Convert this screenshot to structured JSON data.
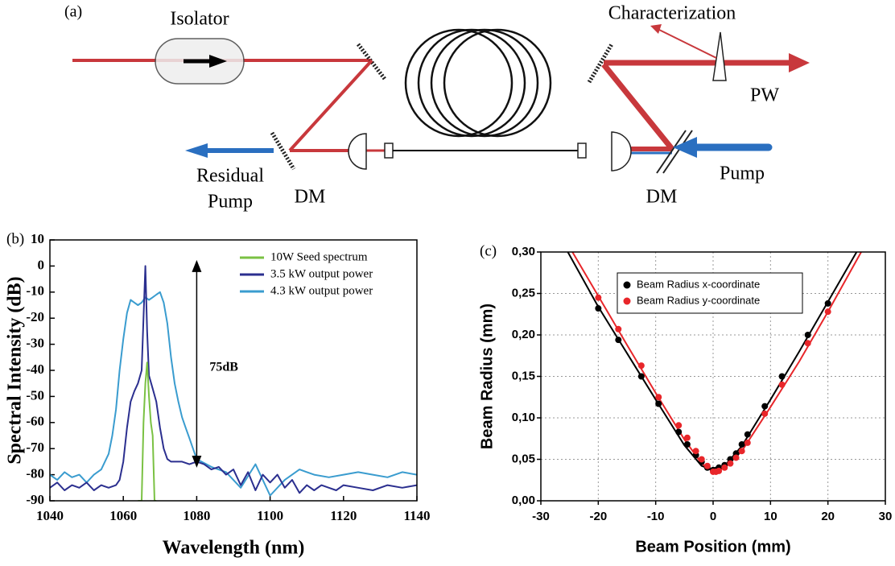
{
  "diagram": {
    "panel_label": "(a)",
    "isolator": "Isolator",
    "characterization": "Characterization",
    "output": "PW",
    "residual_pump": [
      "Residual",
      "Pump"
    ],
    "dichroic_mirrors": [
      "DM",
      "DM"
    ],
    "pump": "Pump"
  },
  "chart_data": [
    {
      "type": "line",
      "panel_label": "(b)",
      "xlabel": "Wavelength (nm)",
      "ylabel": "Spectral Intensity (dB)",
      "xlim": [
        1040,
        1140
      ],
      "ylim": [
        -90,
        10
      ],
      "xticks": [
        1040,
        1060,
        1080,
        1100,
        1120,
        1140
      ],
      "yticks": [
        -90,
        -80,
        -70,
        -60,
        -50,
        -40,
        -30,
        -20,
        -10,
        0,
        10
      ],
      "legend": "upper right",
      "series": [
        {
          "name": "10W Seed spectrum",
          "color": "#7ac143",
          "x": [
            1064,
            1065,
            1065.5,
            1066,
            1066.5,
            1067,
            1067.5,
            1068,
            1068.5,
            1069
          ],
          "values": [
            -90,
            -90,
            -60,
            -45,
            -37,
            -50,
            -60,
            -65,
            -90,
            -90
          ]
        },
        {
          "name": "3.5 kW output power",
          "color": "#2b2f8f",
          "x": [
            1040,
            1042,
            1044,
            1046,
            1048,
            1050,
            1052,
            1054,
            1056,
            1058,
            1059,
            1060,
            1061,
            1062,
            1063,
            1064,
            1065,
            1065.5,
            1066,
            1066.5,
            1067,
            1068,
            1069,
            1070,
            1071,
            1072,
            1073,
            1074,
            1076,
            1078,
            1080,
            1082,
            1084,
            1086,
            1088,
            1090,
            1092,
            1094,
            1096,
            1098,
            1100,
            1102,
            1104,
            1106,
            1108,
            1110,
            1112,
            1114,
            1116,
            1118,
            1120,
            1124,
            1128,
            1132,
            1136,
            1140
          ],
          "values": [
            -85,
            -83,
            -86,
            -84,
            -85,
            -83,
            -86,
            -84,
            -85,
            -84,
            -82,
            -75,
            -62,
            -52,
            -48,
            -45,
            -40,
            -20,
            0,
            -25,
            -42,
            -47,
            -52,
            -62,
            -70,
            -74,
            -75,
            -75,
            -75,
            -76,
            -75,
            -76,
            -78,
            -77,
            -80,
            -78,
            -84,
            -79,
            -86,
            -80,
            -83,
            -80,
            -85,
            -82,
            -87,
            -84,
            -86,
            -84,
            -85,
            -86,
            -84,
            -85,
            -86,
            -84,
            -85,
            -84
          ]
        },
        {
          "name": "4.3 kW output power",
          "color": "#3a9ccf",
          "x": [
            1040,
            1042,
            1044,
            1046,
            1048,
            1050,
            1052,
            1054,
            1056,
            1057,
            1058,
            1059,
            1060,
            1061,
            1062,
            1063,
            1064,
            1065,
            1066,
            1067,
            1068,
            1069,
            1070,
            1071,
            1072,
            1073,
            1074,
            1075,
            1076,
            1077,
            1078,
            1079,
            1080,
            1084,
            1088,
            1092,
            1096,
            1100,
            1104,
            1108,
            1112,
            1116,
            1120,
            1124,
            1128,
            1132,
            1136,
            1140
          ],
          "values": [
            -80,
            -82,
            -79,
            -81,
            -80,
            -83,
            -80,
            -78,
            -72,
            -65,
            -55,
            -40,
            -28,
            -18,
            -13,
            -14,
            -15,
            -14,
            -12,
            -13,
            -12,
            -11,
            -10,
            -14,
            -22,
            -35,
            -45,
            -52,
            -58,
            -62,
            -66,
            -70,
            -74,
            -77,
            -79,
            -85,
            -76,
            -88,
            -82,
            -78,
            -80,
            -81,
            -80,
            -79,
            -80,
            -81,
            -79,
            -80
          ]
        }
      ],
      "annotation": {
        "text": "75dB",
        "x": 1080,
        "y_from": 0,
        "y_to": -75
      }
    },
    {
      "type": "scatter",
      "panel_label": "(c)",
      "xlabel": "Beam Position (mm)",
      "ylabel": "Beam Radius (mm)",
      "xlim": [
        -30,
        30
      ],
      "ylim": [
        0,
        0.3
      ],
      "xticks": [
        -30,
        -20,
        -10,
        0,
        10,
        20,
        30
      ],
      "yticks": [
        {
          "value": 0,
          "label": "0,00"
        },
        {
          "value": 0.05,
          "label": "0,05"
        },
        {
          "value": 0.1,
          "label": "0,10"
        },
        {
          "value": 0.15,
          "label": "0,15"
        },
        {
          "value": 0.2,
          "label": "0,20"
        },
        {
          "value": 0.25,
          "label": "0,25"
        },
        {
          "value": 0.3,
          "label": "0,30"
        }
      ],
      "grid": true,
      "legend": "upper center",
      "series": [
        {
          "name": "Beam Radius x-coordinate",
          "color": "#000000",
          "x": [
            -20,
            -16.5,
            -12.5,
            -9.5,
            -6,
            -4.5,
            -3,
            -2,
            -1,
            0,
            0.5,
            1,
            2,
            3,
            4,
            5,
            6,
            9,
            12,
            16.5,
            20
          ],
          "values": [
            0.232,
            0.194,
            0.15,
            0.117,
            0.083,
            0.068,
            0.055,
            0.047,
            0.04,
            0.037,
            0.037,
            0.04,
            0.043,
            0.05,
            0.057,
            0.068,
            0.08,
            0.114,
            0.15,
            0.2,
            0.238
          ],
          "fit": {
            "x": [
              -25.3,
              -20,
              -15,
              -10,
              -5,
              -2,
              0,
              2,
              5,
              10,
              15,
              20,
              25
            ],
            "values": [
              0.3,
              0.234,
              0.178,
              0.122,
              0.067,
              0.042,
              0.037,
              0.042,
              0.066,
              0.122,
              0.18,
              0.24,
              0.3
            ]
          }
        },
        {
          "name": "Beam Radius y-coordinate",
          "color": "#e8262a",
          "x": [
            -20,
            -16.5,
            -12.5,
            -9.5,
            -6,
            -4.5,
            -3,
            -2,
            -1,
            0,
            0.5,
            1,
            2,
            3,
            4,
            5,
            6,
            9,
            12,
            16.5,
            20
          ],
          "values": [
            0.245,
            0.207,
            0.163,
            0.125,
            0.091,
            0.076,
            0.06,
            0.05,
            0.042,
            0.035,
            0.035,
            0.036,
            0.04,
            0.045,
            0.052,
            0.06,
            0.07,
            0.105,
            0.14,
            0.19,
            0.228
          ],
          "fit": {
            "x": [
              -24.5,
              -20,
              -15,
              -10,
              -5,
              -2,
              0,
              2,
              5,
              10,
              15,
              20,
              25.8
            ],
            "values": [
              0.3,
              0.247,
              0.188,
              0.13,
              0.074,
              0.045,
              0.035,
              0.04,
              0.06,
              0.113,
              0.168,
              0.228,
              0.3
            ]
          }
        }
      ]
    }
  ]
}
